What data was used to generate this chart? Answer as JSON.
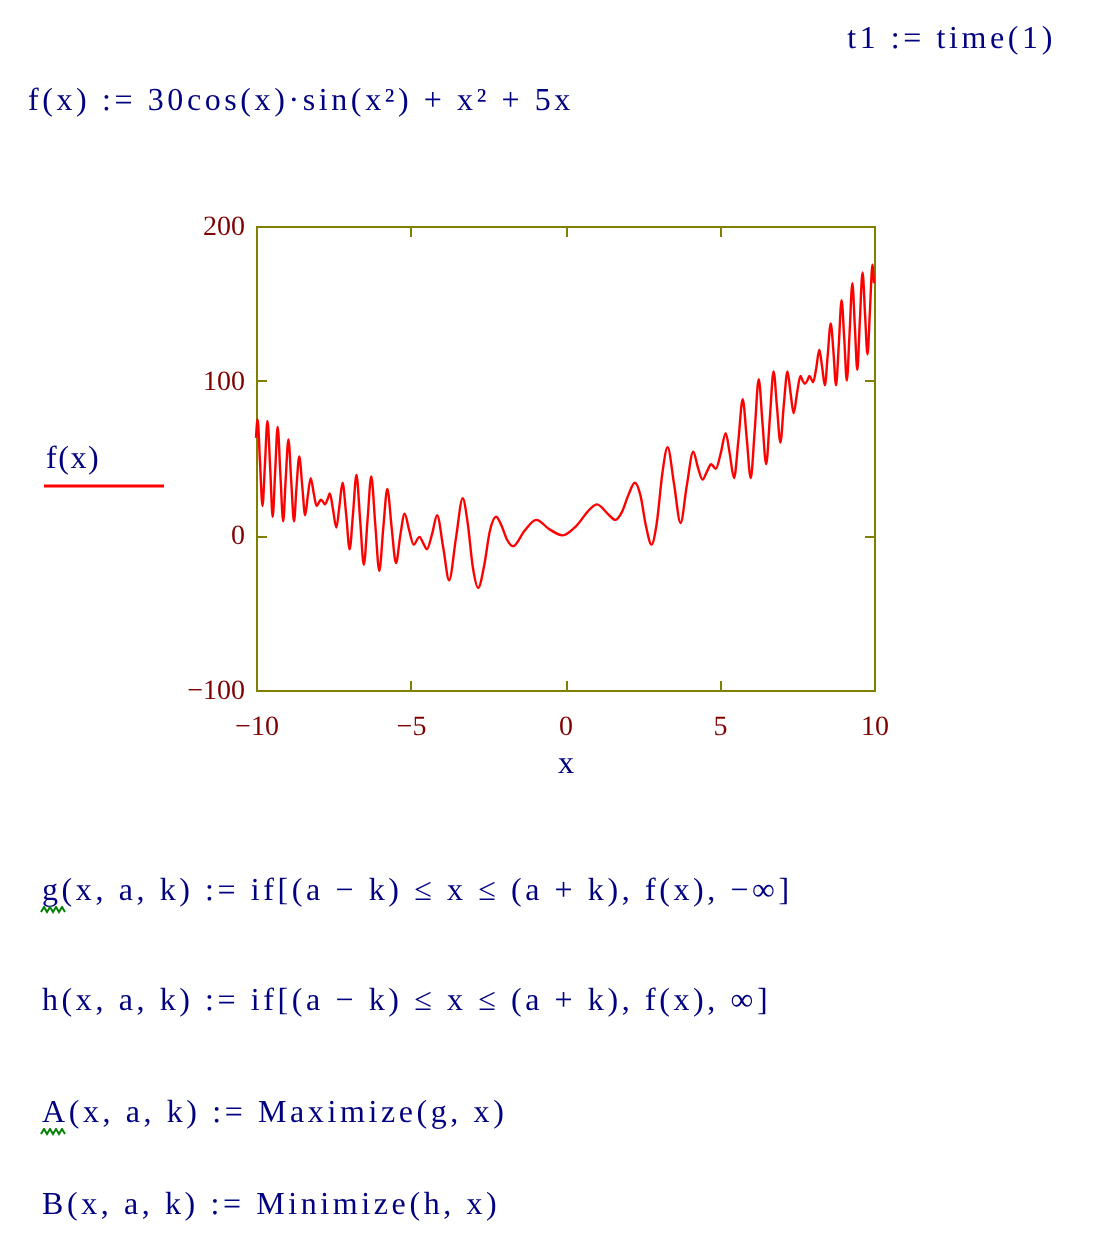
{
  "chart_data": {
    "type": "line",
    "xlabel": "x",
    "legend": "left",
    "annotations": [
      "t1 := time(1)",
      "f(x) := 30cos(x)·sin(x²) + x² + 5x",
      "g(x, a, k) := if[(a − k) ≤ x ≤ (a + k), f(x), −∞]",
      "h(x, a, k) := if[(a − k) ≤ x ≤ (a + k), f(x), ∞]",
      "A(x, a, k) := Maximize(g, x)",
      "B(x, a, k) := Minimize(h, x)"
    ],
    "x": [
      -10.0,
      -9.97,
      -9.95,
      -9.87,
      -9.79,
      -9.71,
      -9.63,
      -9.54,
      -9.46,
      -9.38,
      -9.3,
      -9.21,
      -9.12,
      -9.04,
      -8.95,
      -8.86,
      -8.77,
      -8.69,
      -8.6,
      -8.5,
      -8.41,
      -8.32,
      -8.23,
      -8.13,
      -8.04,
      -7.97,
      -7.9,
      -7.84,
      -7.77,
      -7.69,
      -7.61,
      -7.51,
      -7.4,
      -7.3,
      -7.2,
      -7.08,
      -6.97,
      -6.86,
      -6.75,
      -6.63,
      -6.51,
      -6.39,
      -6.27,
      -6.14,
      -6.01,
      -5.88,
      -5.75,
      -5.61,
      -5.47,
      -5.33,
      -5.19,
      -5.04,
      -4.9,
      -4.71,
      -4.59,
      -4.47,
      -4.3,
      -4.14,
      -3.94,
      -3.75,
      -3.53,
      -3.31,
      -3.15,
      -2.98,
      -2.81,
      -2.62,
      -2.43,
      -2.23,
      -2.05,
      -1.87,
      -1.68,
      -1.31,
      -0.93,
      -0.51,
      -0.08,
      0.36,
      0.81,
      1.03,
      1.43,
      1.63,
      1.84,
      2.05,
      2.26,
      2.44,
      2.62,
      2.8,
      2.97,
      3.15,
      3.32,
      3.53,
      3.74,
      3.94,
      4.15,
      4.3,
      4.45,
      4.59,
      4.73,
      4.88,
      5.04,
      5.2,
      5.33,
      5.47,
      5.61,
      5.75,
      5.88,
      6.01,
      6.14,
      6.27,
      6.39,
      6.51,
      6.63,
      6.75,
      6.86,
      6.97,
      7.08,
      7.2,
      7.3,
      7.4,
      7.51,
      7.62,
      7.69,
      7.76,
      7.84,
      7.91,
      7.97,
      8.03,
      8.13,
      8.23,
      8.32,
      8.41,
      8.5,
      8.6,
      8.69,
      8.77,
      8.86,
      8.95,
      9.04,
      9.12,
      9.21,
      9.3,
      9.38,
      9.46,
      9.54,
      9.63,
      9.71,
      9.79,
      9.87,
      9.95,
      9.97,
      10.0
    ],
    "series": [
      {
        "name": "f(x)",
        "color": "#ff0000",
        "values": [
          63,
          72,
          75,
          47,
          19,
          46,
          74,
          43,
          12,
          41,
          70,
          39,
          9,
          36,
          62,
          35,
          9,
          31,
          51,
          31,
          13,
          26,
          37,
          27,
          19,
          21,
          23,
          22,
          20,
          23,
          27,
          17,
          5,
          19,
          34,
          13,
          -9,
          14,
          39,
          10,
          -19,
          10,
          38,
          7,
          -23,
          5,
          30,
          5,
          -18,
          0,
          14,
          3,
          -6,
          -1,
          -5,
          -9,
          1,
          13,
          -8,
          -29,
          -2,
          24,
          8,
          -21,
          -34,
          -20,
          3,
          12,
          6,
          -3,
          -7,
          3,
          10,
          4,
          0,
          6,
          17,
          20,
          13,
          10,
          15,
          26,
          34,
          26,
          6,
          -6,
          8,
          40,
          57,
          33,
          8,
          32,
          54,
          44,
          36,
          41,
          46,
          43,
          53,
          66,
          53,
          37,
          61,
          88,
          63,
          37,
          68,
          101,
          73,
          46,
          76,
          106,
          83,
          60,
          84,
          106,
          92,
          79,
          92,
          103,
          100,
          98,
          100,
          103,
          101,
          99,
          108,
          120,
          109,
          97,
          116,
          137,
          118,
          97,
          123,
          152,
          126,
          100,
          131,
          163,
          135,
          107,
          138,
          170,
          143,
          117,
          146,
          175,
          171,
          163
        ]
      }
    ],
    "xlim": [
      -10,
      10
    ],
    "ylim": [
      -100,
      200
    ],
    "xticks": [
      {
        "value": -10,
        "label": "−10"
      },
      {
        "value": -5,
        "label": "−5"
      },
      0,
      5,
      10
    ],
    "yticks": [
      {
        "value": -100,
        "label": "−100"
      },
      0,
      100,
      200
    ]
  }
}
